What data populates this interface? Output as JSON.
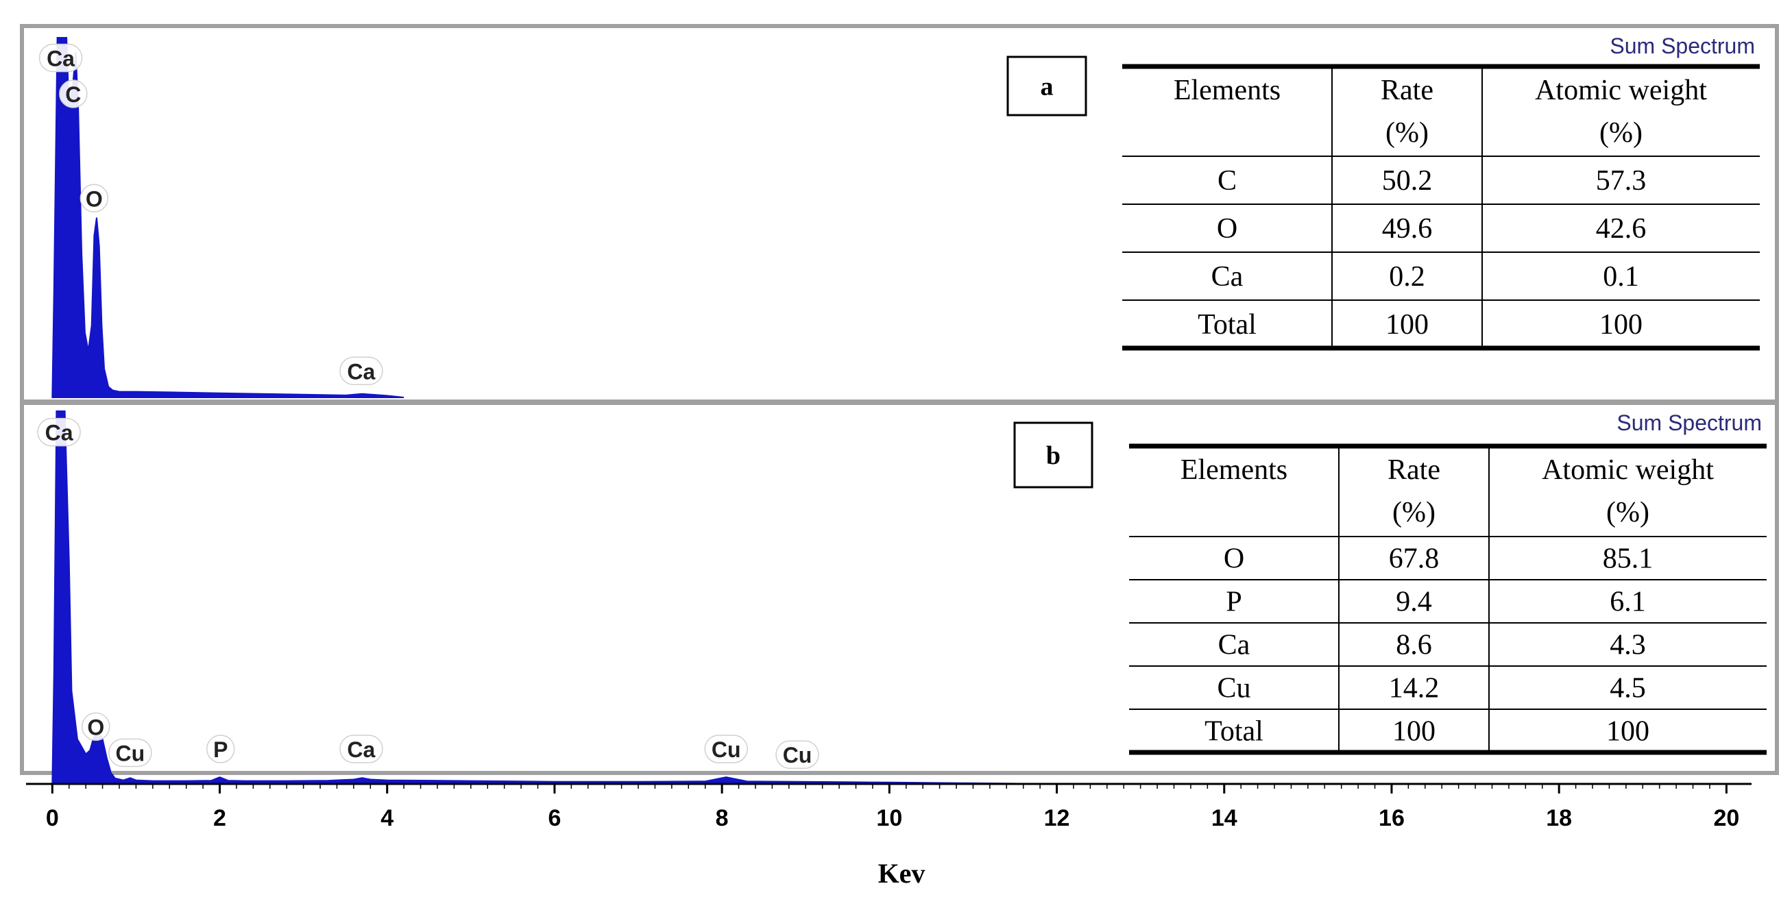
{
  "figure": {
    "xlabel": "Kev",
    "colors": {
      "spectrum": "#1414c8",
      "panel_border": "#a0a0a0",
      "title_text": "#2a2a7a",
      "table_rule": "#000000"
    }
  },
  "chart_data": [
    {
      "type": "area",
      "panel_label": "a",
      "title": "Sum Spectrum",
      "xlabel": "",
      "ylabel": "",
      "xlim": [
        -0.15,
        20.3
      ],
      "ylim": [
        0,
        100
      ],
      "grid": false,
      "x_ticks": [],
      "series": [
        {
          "x": [
            0.0,
            0.02,
            0.06,
            0.1,
            0.14,
            0.17,
            0.2,
            0.25,
            0.28,
            0.31,
            0.35,
            0.39,
            0.43,
            0.47,
            0.5,
            0.53,
            0.56,
            0.59,
            0.62,
            0.67,
            0.72,
            0.8,
            1.0,
            1.5,
            2.0,
            2.5,
            3.0,
            3.5,
            3.7,
            4.0,
            4.2
          ],
          "y": [
            0,
            30,
            100,
            100,
            100,
            100,
            80,
            88,
            96,
            80,
            40,
            18,
            13,
            20,
            45,
            50,
            42,
            20,
            8,
            3,
            2,
            1.6,
            1.6,
            1.4,
            1.2,
            1.0,
            0.8,
            0.6,
            1.0,
            0.5,
            0
          ]
        }
      ],
      "peak_labels": [
        {
          "label": "Ca",
          "x": 0.1,
          "y": 94
        },
        {
          "label": "C",
          "x": 0.25,
          "y": 84
        },
        {
          "label": "O",
          "x": 0.5,
          "y": 55
        },
        {
          "label": "Ca",
          "x": 3.69,
          "y": 7
        }
      ],
      "table": {
        "headers": [
          {
            "line1": "Elements",
            "line2": ""
          },
          {
            "line1": "Rate",
            "line2": "(%)"
          },
          {
            "line1": "Atomic weight",
            "line2": "(%)"
          }
        ],
        "rows": [
          [
            "C",
            "50.2",
            "57.3"
          ],
          [
            "O",
            "49.6",
            "42.6"
          ],
          [
            "Ca",
            "0.2",
            "0.1"
          ],
          [
            "Total",
            "100",
            "100"
          ]
        ]
      }
    },
    {
      "type": "area",
      "panel_label": "b",
      "title": "Sum Spectrum",
      "xlabel": "Kev",
      "ylabel": "",
      "xlim": [
        -0.15,
        20.3
      ],
      "ylim": [
        0,
        100
      ],
      "grid": false,
      "x_ticks": [
        0,
        2,
        4,
        6,
        8,
        10,
        12,
        14,
        16,
        18,
        20
      ],
      "series": [
        {
          "x": [
            0.0,
            0.02,
            0.05,
            0.1,
            0.15,
            0.2,
            0.23,
            0.3,
            0.35,
            0.4,
            0.45,
            0.5,
            0.55,
            0.6,
            0.65,
            0.7,
            0.75,
            0.85,
            0.93,
            1.0,
            1.2,
            1.6,
            1.9,
            2.0,
            2.1,
            2.3,
            2.8,
            3.3,
            3.6,
            3.7,
            3.8,
            4.0,
            5.0,
            6.0,
            7.0,
            7.8,
            8.05,
            8.3,
            8.9,
            9.5,
            10.0,
            10.5,
            11.0,
            12.0
          ],
          "y": [
            0,
            30,
            100,
            100,
            100,
            60,
            25,
            12,
            10,
            8,
            9,
            13,
            14,
            12,
            7,
            3,
            1.5,
            1.0,
            1.6,
            1.0,
            0.8,
            0.8,
            0.9,
            1.8,
            0.9,
            0.8,
            0.8,
            0.9,
            1.2,
            1.6,
            1.2,
            1.0,
            0.8,
            0.6,
            0.6,
            0.7,
            1.8,
            0.7,
            0.6,
            0.5,
            0.4,
            0.3,
            0.2,
            0
          ]
        }
      ],
      "peak_labels": [
        {
          "label": "Ca",
          "x": 0.08,
          "y": 94
        },
        {
          "label": "O",
          "x": 0.52,
          "y": 15
        },
        {
          "label": "Cu",
          "x": 0.93,
          "y": 8
        },
        {
          "label": "P",
          "x": 2.01,
          "y": 9
        },
        {
          "label": "Ca",
          "x": 3.69,
          "y": 9
        },
        {
          "label": "Cu",
          "x": 8.05,
          "y": 9
        },
        {
          "label": "Cu",
          "x": 8.9,
          "y": 7.5
        }
      ],
      "table": {
        "headers": [
          {
            "line1": "Elements",
            "line2": ""
          },
          {
            "line1": "Rate",
            "line2": "(%)"
          },
          {
            "line1": "Atomic weight",
            "line2": "(%)"
          }
        ],
        "rows": [
          [
            "O",
            "67.8",
            "85.1"
          ],
          [
            "P",
            "9.4",
            "6.1"
          ],
          [
            "Ca",
            "8.6",
            "4.3"
          ],
          [
            "Cu",
            "14.2",
            "4.5"
          ],
          [
            "Total",
            "100",
            "100"
          ]
        ]
      }
    }
  ]
}
